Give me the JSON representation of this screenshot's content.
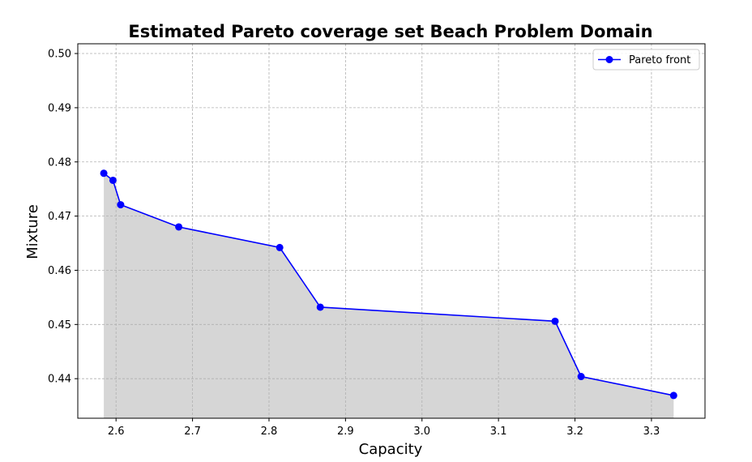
{
  "chart_data": {
    "type": "line",
    "title": "Estimated Pareto coverage set Beach Problem Domain",
    "xlabel": "Capacity",
    "ylabel": "Mixture",
    "xlim": [
      2.55,
      3.37
    ],
    "ylim": [
      0.4327,
      0.5018
    ],
    "x_ticks": [
      2.6,
      2.7,
      2.8,
      2.9,
      3.0,
      3.1,
      3.2,
      3.3
    ],
    "y_ticks": [
      0.44,
      0.45,
      0.46,
      0.47,
      0.48,
      0.49,
      0.5
    ],
    "x_tick_labels": [
      "2.6",
      "2.7",
      "2.8",
      "2.9",
      "3.0",
      "3.1",
      "3.2",
      "3.3"
    ],
    "y_tick_labels": [
      "0.44",
      "0.45",
      "0.46",
      "0.47",
      "0.48",
      "0.49",
      "0.50"
    ],
    "grid": true,
    "fill_under": true,
    "legend_position": "top-right",
    "series": [
      {
        "name": "Pareto front",
        "color": "#0000ff",
        "fill_color": "#d6d6d6",
        "marker": "circle",
        "x": [
          2.584,
          2.596,
          2.606,
          2.682,
          2.814,
          2.867,
          3.174,
          3.208,
          3.329
        ],
        "y": [
          0.4779,
          0.4766,
          0.4721,
          0.468,
          0.4642,
          0.4532,
          0.4506,
          0.4404,
          0.4369
        ]
      }
    ]
  }
}
